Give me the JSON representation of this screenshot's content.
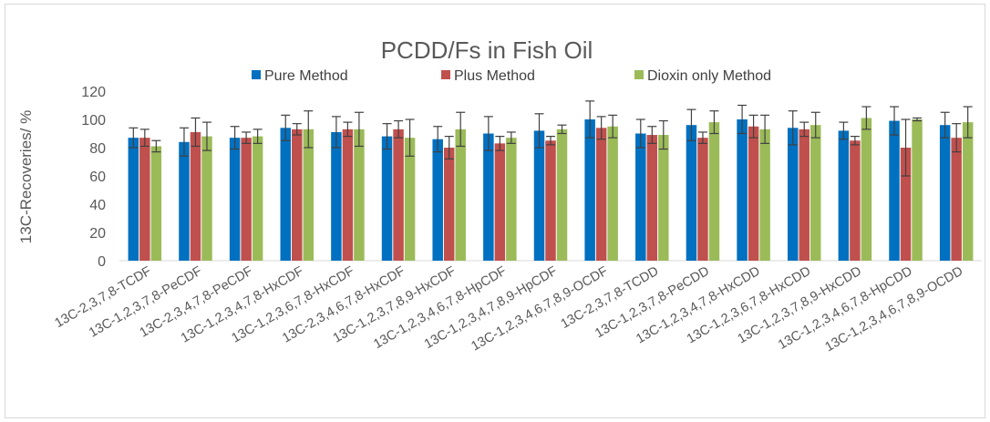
{
  "chart_data": {
    "type": "bar",
    "title": "PCDD/Fs in Fish Oil",
    "ylabel": "13C-Recoveries/ %",
    "xlabel": "",
    "ylim": [
      0,
      120
    ],
    "yticks": [
      0,
      20,
      40,
      60,
      80,
      100,
      120
    ],
    "grid": false,
    "legend_position": "top",
    "categories": [
      "13C-2,3,7,8-TCDF",
      "13C-1,2,3,7,8-PeCDF",
      "13C-2,3,4,7,8-PeCDF",
      "13C-1,2,3,4,7,8-HxCDF",
      "13C-1,2,3,6,7,8-HxCDF",
      "13C-2,3,4,6,7,8-HxCDF",
      "13C-1,2,3,7,8,9-HxCDF",
      "13C-1,2,3,4,6,7,8-HpCDF",
      "13C-1,2,3,4,7,8,9-HpCDF",
      "13C-1,2,3,4,6,7,8,9-OCDF",
      "13C-2,3,7,8-TCDD",
      "13C-1,2,3,7,8-PeCDD",
      "13C-1,2,3,4,7,8-HxCDD",
      "13C-1,2,3,6,7,8-HxCDD",
      "13C-1,2,3,7,8,9-HxCDD",
      "13C-1,2,3,4,6,7,8-HpCDD",
      "13C-1,2,3,4,6,7,8,9-OCDD"
    ],
    "series": [
      {
        "name": "Pure Method",
        "color": "#0070C0",
        "values": [
          87,
          84,
          87,
          94,
          91,
          88,
          86,
          90,
          92,
          100,
          90,
          96,
          100,
          94,
          92,
          99,
          96
        ],
        "errors": [
          7,
          10,
          8,
          9,
          11,
          9,
          9,
          12,
          12,
          13,
          10,
          11,
          10,
          12,
          6,
          10,
          9
        ]
      },
      {
        "name": "Plus Method",
        "color": "#C0504D",
        "values": [
          87,
          91,
          87,
          93,
          93,
          93,
          80,
          83,
          85,
          94,
          89,
          87,
          95,
          93,
          85,
          80,
          87
        ],
        "errors": [
          6,
          10,
          4,
          4,
          5,
          6,
          8,
          5,
          3,
          8,
          6,
          4,
          8,
          5,
          3,
          20,
          10
        ]
      },
      {
        "name": "Dioxin only Method",
        "color": "#9BBB59",
        "values": [
          81,
          88,
          88,
          93,
          93,
          87,
          93,
          87,
          93,
          95,
          89,
          98,
          93,
          96,
          101,
          100,
          98
        ],
        "errors": [
          4,
          10,
          5,
          13,
          12,
          13,
          12,
          4,
          3,
          8,
          10,
          8,
          10,
          9,
          8,
          1,
          11
        ]
      }
    ]
  }
}
